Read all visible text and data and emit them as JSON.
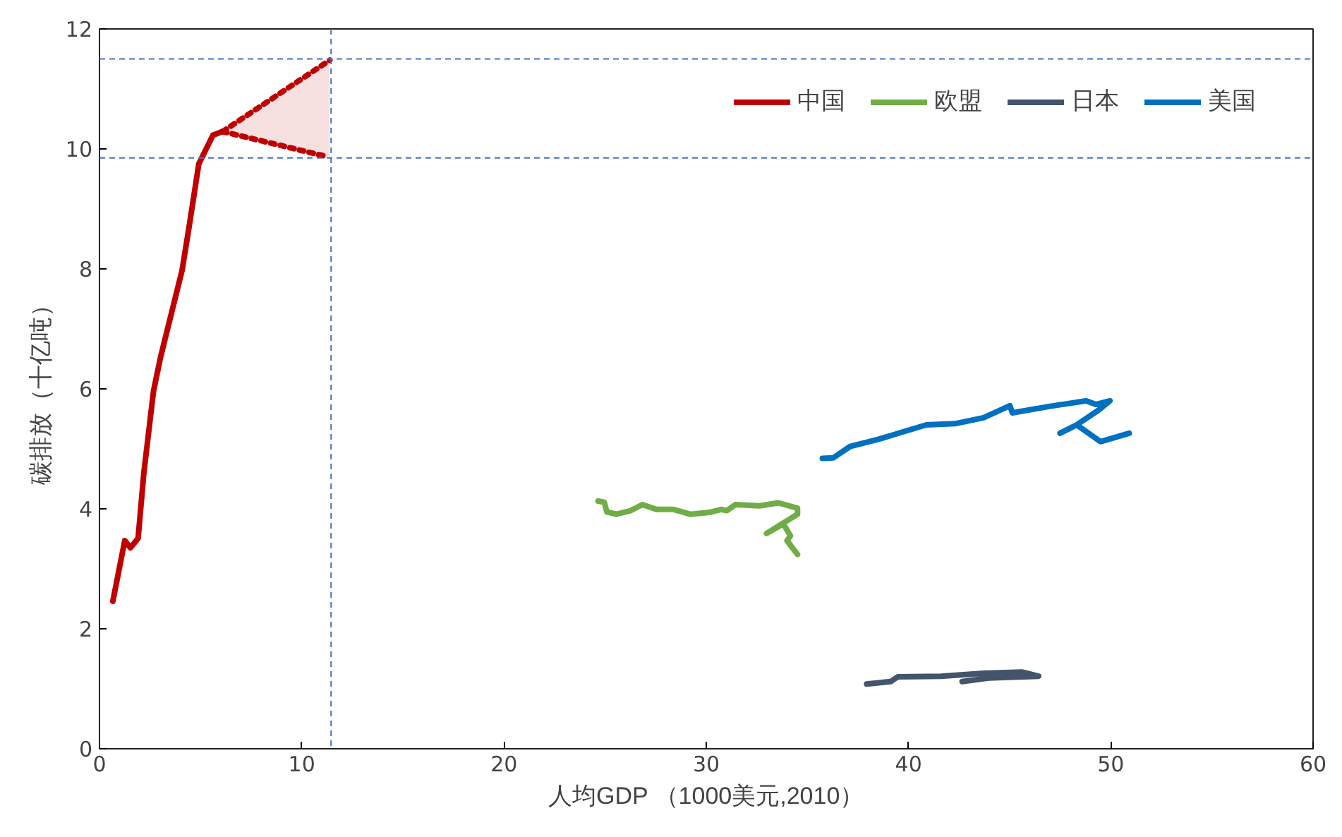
{
  "chart_data": {
    "type": "line",
    "xlabel": "人均GDP （1000美元,2010）",
    "ylabel": "碳排放（十亿吨）",
    "xlim": [
      0,
      60
    ],
    "xticks": [
      0,
      10,
      20,
      30,
      40,
      50,
      60
    ],
    "ylim": [
      0,
      12
    ],
    "yticks": [
      0,
      2,
      4,
      6,
      8,
      10,
      12
    ],
    "grid": false,
    "legend": "top right",
    "marker": "none",
    "line_style": "solid",
    "series": [
      {
        "name": "中国",
        "color": "#c00000",
        "x": [
          0.66,
          1.25,
          1.53,
          1.91,
          2.19,
          2.67,
          3.02,
          4.08,
          4.43,
          4.91,
          5.61,
          6.09
        ],
        "values": [
          2.46,
          3.47,
          3.35,
          3.51,
          4.59,
          5.96,
          6.53,
          7.97,
          8.7,
          9.75,
          10.23,
          10.29
        ]
      },
      {
        "name": "欧盟",
        "color": "#70ad47",
        "x": [
          24.65,
          24.96,
          25.08,
          25.55,
          26.26,
          26.84,
          27.55,
          28.38,
          29.21,
          30.15,
          30.74,
          31.02,
          31.44,
          32.63,
          33.57,
          34.51,
          34.51,
          32.98,
          33.81,
          34.16,
          33.99,
          34.51
        ],
        "values": [
          4.13,
          4.11,
          3.95,
          3.91,
          3.97,
          4.07,
          3.99,
          3.99,
          3.91,
          3.94,
          3.99,
          3.97,
          4.07,
          4.05,
          4.1,
          4.01,
          3.91,
          3.59,
          3.75,
          3.55,
          3.47,
          3.24
        ]
      },
      {
        "name": "日本",
        "color": "#44546a",
        "x": [
          37.93,
          39.11,
          39.47,
          41.59,
          43.71,
          45.6,
          46.43,
          43.95,
          42.65
        ],
        "values": [
          1.08,
          1.12,
          1.2,
          1.21,
          1.26,
          1.28,
          1.21,
          1.18,
          1.12
        ]
      },
      {
        "name": "美国",
        "color": "#0070c0",
        "x": [
          35.74,
          36.28,
          37.11,
          38.52,
          40.88,
          42.3,
          43.71,
          45.01,
          45.13,
          47.01,
          48.78,
          49.26,
          49.96,
          49.37,
          48.31,
          47.49,
          48.31,
          49.49,
          50.91
        ],
        "values": [
          4.84,
          4.85,
          5.04,
          5.16,
          5.4,
          5.42,
          5.52,
          5.72,
          5.6,
          5.71,
          5.8,
          5.74,
          5.8,
          5.64,
          5.4,
          5.26,
          5.4,
          5.12,
          5.26
        ]
      },
      {
        "color": "#c00000",
        "line_style": "dotted",
        "x": [
          6.09,
          11.39
        ],
        "values": [
          10.29,
          11.48
        ],
        "lower": [
          10.29,
          9.87
        ],
        "upper": [
          10.29,
          11.48
        ]
      },
      {
        "color": "#c00000",
        "line_style": "dotted",
        "x": [
          6.09,
          11.27
        ],
        "values": [
          10.29,
          9.87
        ]
      }
    ],
    "ref_lines": [
      {
        "axis": "y",
        "value": 11.5,
        "color": "#4472c4",
        "line_style": "dashed"
      },
      {
        "axis": "y",
        "value": 9.85,
        "color": "#4472c4",
        "line_style": "dashed"
      },
      {
        "axis": "x",
        "value": 11.45,
        "color": "#4472c4",
        "line_style": "dashed"
      }
    ]
  }
}
